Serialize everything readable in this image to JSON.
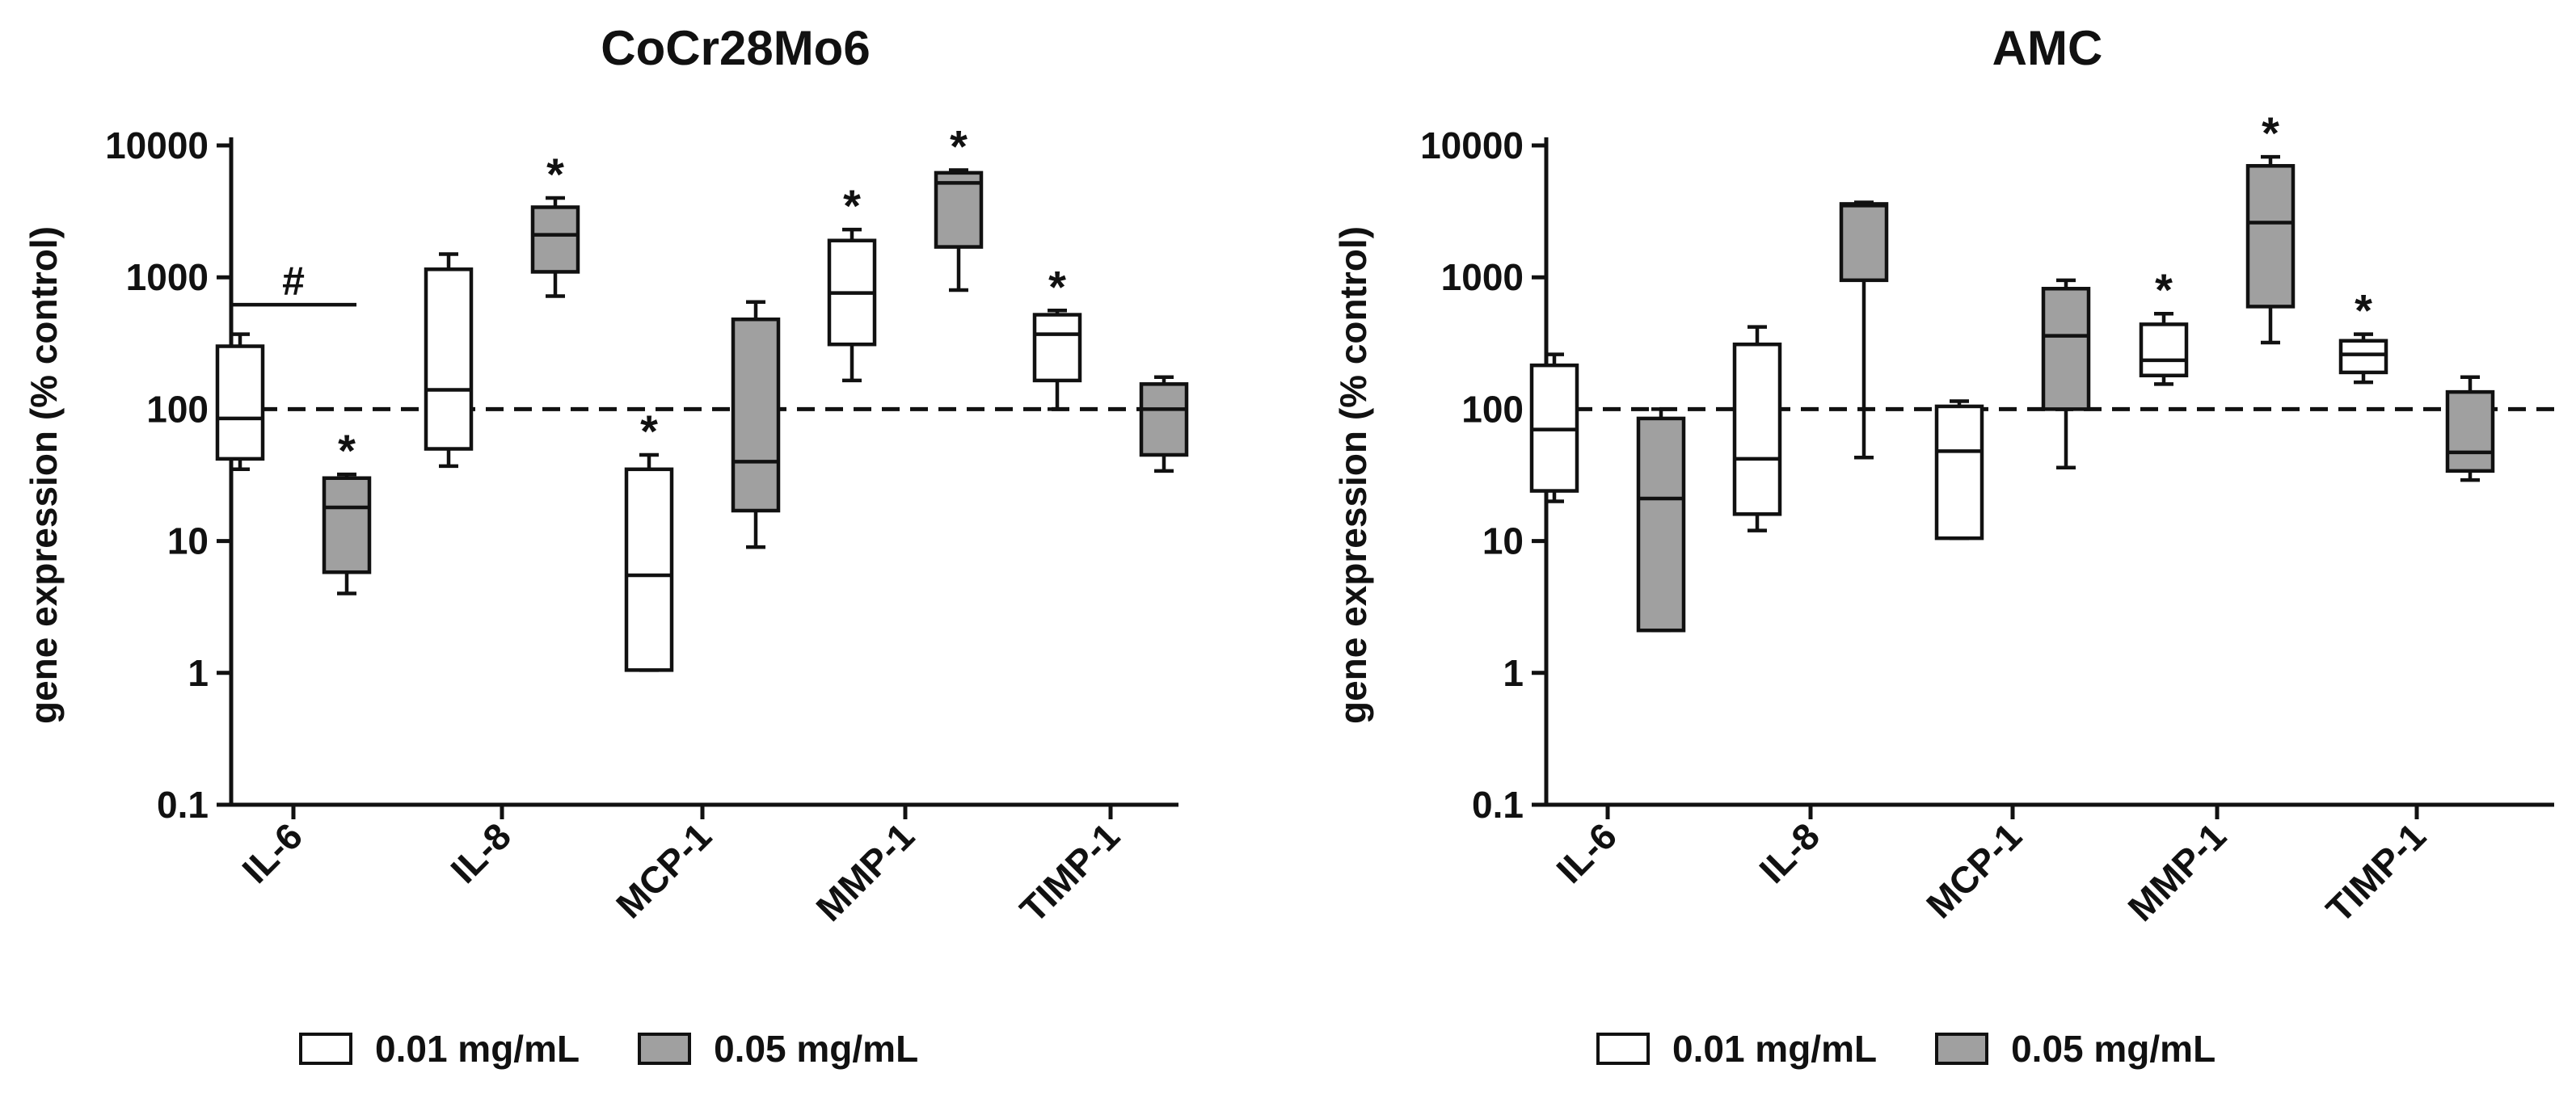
{
  "legend": {
    "series1_label": "0.01 mg/mL",
    "series2_label": "0.05 mg/mL"
  },
  "colors": {
    "series1_fill": "#ffffff",
    "series2_fill": "#a0a0a0",
    "stroke": "#111111"
  },
  "chart_data": [
    {
      "type": "box",
      "title": "CoCr28Mo6",
      "ylabel": "gene expression (% control)",
      "yscale": "log",
      "ylim": [
        0.1,
        10000
      ],
      "yticks": [
        "0.1",
        "1",
        "10",
        "100",
        "1000",
        "10000"
      ],
      "reference_line": 100,
      "categories": [
        "IL-6",
        "IL-8",
        "MCP-1",
        "MMP-1",
        "TIMP-1"
      ],
      "series": [
        {
          "name": "0.01 mg/mL",
          "boxes": [
            {
              "min": 35,
              "q1": 42,
              "median": 85,
              "q3": 300,
              "max": 370,
              "mark": ""
            },
            {
              "min": 37,
              "q1": 50,
              "median": 140,
              "q3": 1150,
              "max": 1500,
              "mark": ""
            },
            {
              "min": 1.05,
              "q1": 1.05,
              "median": 5.5,
              "q3": 35,
              "max": 45,
              "mark": "*"
            },
            {
              "min": 165,
              "q1": 310,
              "median": 760,
              "q3": 1900,
              "max": 2300,
              "mark": "*"
            },
            {
              "min": 100,
              "q1": 165,
              "median": 370,
              "q3": 520,
              "max": 560,
              "mark": "*"
            }
          ]
        },
        {
          "name": "0.05 mg/mL",
          "boxes": [
            {
              "min": 4,
              "q1": 5.8,
              "median": 18,
              "q3": 30,
              "max": 32,
              "mark": "*"
            },
            {
              "min": 720,
              "q1": 1100,
              "median": 2100,
              "q3": 3400,
              "max": 4000,
              "mark": "*"
            },
            {
              "min": 9,
              "q1": 17,
              "median": 40,
              "q3": 480,
              "max": 650,
              "mark": ""
            },
            {
              "min": 800,
              "q1": 1700,
              "median": 5200,
              "q3": 6200,
              "max": 6500,
              "mark": "*"
            },
            {
              "min": 34,
              "q1": 45,
              "median": 100,
              "q3": 155,
              "max": 175,
              "mark": ""
            }
          ]
        }
      ],
      "annotations": [
        {
          "text": "#",
          "category": "IL-6",
          "y": 620
        }
      ]
    },
    {
      "type": "box",
      "title": "AMC",
      "ylabel": "gene expression (% control)",
      "yscale": "log",
      "ylim": [
        0.1,
        10000
      ],
      "yticks": [
        "0.1",
        "1",
        "10",
        "100",
        "1000",
        "10000"
      ],
      "reference_line": 100,
      "categories": [
        "IL-6",
        "IL-8",
        "MCP-1",
        "MMP-1",
        "TIMP-1"
      ],
      "series": [
        {
          "name": "0.01 mg/mL",
          "boxes": [
            {
              "min": 20,
              "q1": 24,
              "median": 70,
              "q3": 215,
              "max": 260,
              "mark": ""
            },
            {
              "min": 12,
              "q1": 16,
              "median": 42,
              "q3": 310,
              "max": 420,
              "mark": ""
            },
            {
              "min": 10.5,
              "q1": 10.5,
              "median": 48,
              "q3": 105,
              "max": 115,
              "mark": ""
            },
            {
              "min": 155,
              "q1": 180,
              "median": 235,
              "q3": 440,
              "max": 530,
              "mark": "*"
            },
            {
              "min": 160,
              "q1": 190,
              "median": 260,
              "q3": 330,
              "max": 370,
              "mark": "*"
            }
          ]
        },
        {
          "name": "0.05 mg/mL",
          "boxes": [
            {
              "min": 2.1,
              "q1": 2.1,
              "median": 21,
              "q3": 85,
              "max": 100,
              "mark": ""
            },
            {
              "min": 43,
              "q1": 950,
              "median": 3500,
              "q3": 3600,
              "max": 3700,
              "mark": ""
            },
            {
              "min": 36,
              "q1": 100,
              "median": 360,
              "q3": 820,
              "max": 950,
              "mark": ""
            },
            {
              "min": 320,
              "q1": 600,
              "median": 2600,
              "q3": 7000,
              "max": 8200,
              "mark": "*"
            },
            {
              "min": 29,
              "q1": 34,
              "median": 47,
              "q3": 135,
              "max": 175,
              "mark": ""
            }
          ]
        }
      ],
      "annotations": []
    }
  ]
}
